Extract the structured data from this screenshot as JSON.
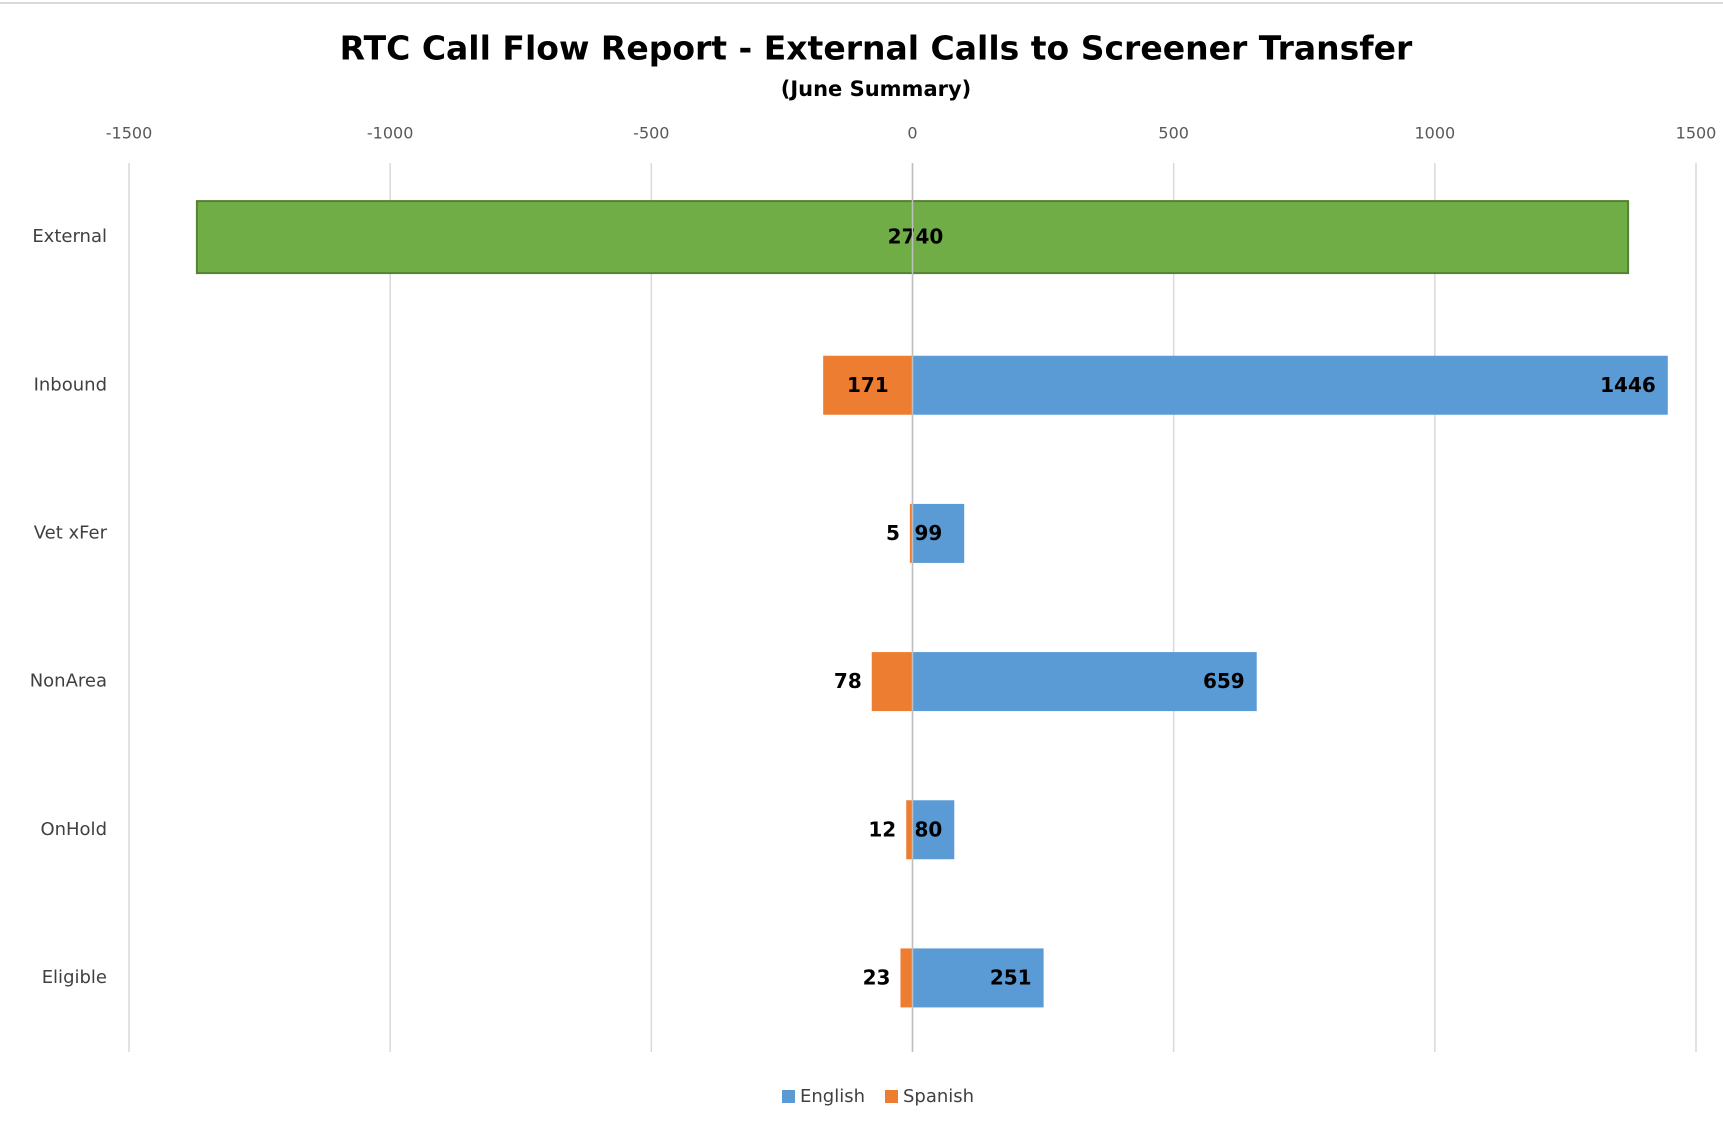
{
  "chart_data": {
    "type": "diverging-bar",
    "title": "RTC Call Flow Report - External Calls to Screener Transfer",
    "subtitle": "(June Summary)",
    "categories": [
      "External",
      "Inbound",
      "Vet xFer",
      "NonArea",
      "OnHold",
      "Eligible"
    ],
    "total": {
      "value": 2740,
      "color": "#70ad47",
      "border": "#548235"
    },
    "series": [
      {
        "name": "English",
        "color": "#5b9bd5",
        "side": "right",
        "values": [
          null,
          1446,
          99,
          659,
          80,
          251
        ]
      },
      {
        "name": "Spanish",
        "color": "#ed7d31",
        "side": "left",
        "values": [
          null,
          171,
          5,
          78,
          12,
          23
        ]
      }
    ],
    "xlim": [
      -1500,
      1500
    ],
    "xticks": [
      -1500,
      -1000,
      -500,
      0,
      500,
      1000,
      1500
    ],
    "grid": true,
    "legend": "bottom"
  }
}
